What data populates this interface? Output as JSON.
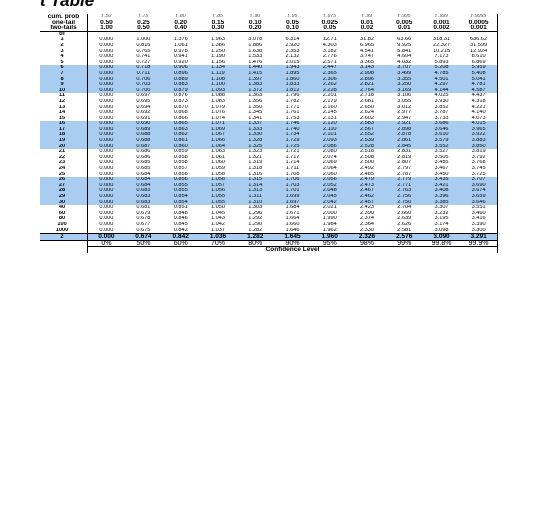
{
  "title": "t Table",
  "header": {
    "cum_prob_label": "cum. prob",
    "one_tail_label": "one-tail",
    "two_tails_label": "two-tails",
    "df_label": "df",
    "symbols": [
      "t .50",
      "t .75",
      "t .80",
      "t .85",
      "t .90",
      "t .95",
      "t .975",
      "t .99",
      "t .995",
      "t .999",
      "t .9995"
    ],
    "one_tail": [
      "0.50",
      "0.25",
      "0.20",
      "0.15",
      "0.10",
      "0.05",
      "0.025",
      "0.01",
      "0.005",
      "0.001",
      "0.0005"
    ],
    "two_tails": [
      "1.00",
      "0.50",
      "0.40",
      "0.30",
      "0.20",
      "0.10",
      "0.05",
      "0.02",
      "0.01",
      "0.002",
      "0.001"
    ]
  },
  "rows": [
    {
      "df": "1",
      "values": [
        "0.000",
        "1.000",
        "1.376",
        "1.963",
        "3.078",
        "6.314",
        "12.71",
        "31.82",
        "63.66",
        "318.31",
        "636.62"
      ]
    },
    {
      "df": "2",
      "values": [
        "0.000",
        "0.816",
        "1.061",
        "1.386",
        "1.886",
        "2.920",
        "4.303",
        "6.965",
        "9.925",
        "22.327",
        "31.599"
      ]
    },
    {
      "df": "3",
      "values": [
        "0.000",
        "0.765",
        "0.978",
        "1.250",
        "1.638",
        "2.353",
        "3.182",
        "4.541",
        "5.841",
        "10.215",
        "12.924"
      ]
    },
    {
      "df": "4",
      "values": [
        "0.000",
        "0.741",
        "0.941",
        "1.190",
        "1.533",
        "2.132",
        "2.776",
        "3.747",
        "4.604",
        "7.173",
        "8.610"
      ]
    },
    {
      "df": "5",
      "values": [
        "0.000",
        "0.727",
        "0.920",
        "1.156",
        "1.476",
        "2.015",
        "2.571",
        "3.365",
        "4.032",
        "5.893",
        "6.869"
      ]
    },
    {
      "df": "6",
      "values": [
        "0.000",
        "0.718",
        "0.906",
        "1.134",
        "1.440",
        "1.943",
        "2.447",
        "3.143",
        "3.707",
        "5.208",
        "5.959"
      ]
    },
    {
      "df": "7",
      "values": [
        "0.000",
        "0.711",
        "0.896",
        "1.119",
        "1.415",
        "1.895",
        "2.365",
        "2.998",
        "3.499",
        "4.785",
        "5.408"
      ]
    },
    {
      "df": "8",
      "values": [
        "0.000",
        "0.706",
        "0.889",
        "1.108",
        "1.397",
        "1.860",
        "2.306",
        "2.896",
        "3.355",
        "4.501",
        "5.041"
      ]
    },
    {
      "df": "9",
      "values": [
        "0.000",
        "0.703",
        "0.883",
        "1.100",
        "1.383",
        "1.833",
        "2.262",
        "2.821",
        "3.250",
        "4.297",
        "4.781"
      ]
    },
    {
      "df": "10",
      "values": [
        "0.000",
        "0.700",
        "0.879",
        "1.093",
        "1.372",
        "1.812",
        "2.228",
        "2.764",
        "3.169",
        "4.144",
        "4.587"
      ]
    },
    {
      "df": "11",
      "values": [
        "0.000",
        "0.697",
        "0.876",
        "1.088",
        "1.363",
        "1.796",
        "2.201",
        "2.718",
        "3.106",
        "4.025",
        "4.437"
      ]
    },
    {
      "df": "12",
      "values": [
        "0.000",
        "0.695",
        "0.873",
        "1.083",
        "1.356",
        "1.782",
        "2.179",
        "2.681",
        "3.055",
        "3.930",
        "4.318"
      ]
    },
    {
      "df": "13",
      "values": [
        "0.000",
        "0.694",
        "0.870",
        "1.079",
        "1.350",
        "1.771",
        "2.160",
        "2.650",
        "3.012",
        "3.852",
        "4.221"
      ]
    },
    {
      "df": "14",
      "values": [
        "0.000",
        "0.692",
        "0.868",
        "1.076",
        "1.345",
        "1.761",
        "2.145",
        "2.624",
        "2.977",
        "3.787",
        "4.140"
      ]
    },
    {
      "df": "15",
      "values": [
        "0.000",
        "0.691",
        "0.866",
        "1.074",
        "1.341",
        "1.753",
        "2.131",
        "2.602",
        "2.947",
        "3.733",
        "4.073"
      ]
    },
    {
      "df": "16",
      "values": [
        "0.000",
        "0.690",
        "0.865",
        "1.071",
        "1.337",
        "1.746",
        "2.120",
        "2.583",
        "2.921",
        "3.686",
        "4.015"
      ]
    },
    {
      "df": "17",
      "values": [
        "0.000",
        "0.689",
        "0.863",
        "1.069",
        "1.333",
        "1.740",
        "2.110",
        "2.567",
        "2.898",
        "3.646",
        "3.965"
      ]
    },
    {
      "df": "18",
      "values": [
        "0.000",
        "0.688",
        "0.862",
        "1.067",
        "1.330",
        "1.734",
        "2.101",
        "2.552",
        "2.878",
        "3.610",
        "3.922"
      ]
    },
    {
      "df": "19",
      "values": [
        "0.000",
        "0.688",
        "0.861",
        "1.066",
        "1.328",
        "1.729",
        "2.093",
        "2.539",
        "2.861",
        "3.579",
        "3.883"
      ]
    },
    {
      "df": "20",
      "values": [
        "0.000",
        "0.687",
        "0.860",
        "1.064",
        "1.325",
        "1.725",
        "2.086",
        "2.528",
        "2.845",
        "3.552",
        "3.850"
      ]
    },
    {
      "df": "21",
      "values": [
        "0.000",
        "0.686",
        "0.859",
        "1.063",
        "1.323",
        "1.721",
        "2.080",
        "2.518",
        "2.831",
        "3.527",
        "3.819"
      ]
    },
    {
      "df": "22",
      "values": [
        "0.000",
        "0.686",
        "0.858",
        "1.061",
        "1.321",
        "1.717",
        "2.074",
        "2.508",
        "2.819",
        "3.505",
        "3.792"
      ]
    },
    {
      "df": "23",
      "values": [
        "0.000",
        "0.685",
        "0.858",
        "1.060",
        "1.319",
        "1.714",
        "2.069",
        "2.500",
        "2.807",
        "3.485",
        "3.768"
      ]
    },
    {
      "df": "24",
      "values": [
        "0.000",
        "0.685",
        "0.857",
        "1.059",
        "1.318",
        "1.711",
        "2.064",
        "2.492",
        "2.797",
        "3.467",
        "3.745"
      ]
    },
    {
      "df": "25",
      "values": [
        "0.000",
        "0.684",
        "0.856",
        "1.058",
        "1.316",
        "1.708",
        "2.060",
        "2.485",
        "2.787",
        "3.450",
        "3.725"
      ]
    },
    {
      "df": "26",
      "values": [
        "0.000",
        "0.684",
        "0.856",
        "1.058",
        "1.315",
        "1.706",
        "2.056",
        "2.479",
        "2.779",
        "3.435",
        "3.707"
      ]
    },
    {
      "df": "27",
      "values": [
        "0.000",
        "0.684",
        "0.855",
        "1.057",
        "1.314",
        "1.703",
        "2.052",
        "2.473",
        "2.771",
        "3.421",
        "3.690"
      ]
    },
    {
      "df": "28",
      "values": [
        "0.000",
        "0.683",
        "0.855",
        "1.056",
        "1.313",
        "1.701",
        "2.048",
        "2.467",
        "2.763",
        "3.408",
        "3.674"
      ]
    },
    {
      "df": "29",
      "values": [
        "0.000",
        "0.683",
        "0.854",
        "1.055",
        "1.311",
        "1.699",
        "2.045",
        "2.462",
        "2.756",
        "3.396",
        "3.659"
      ]
    },
    {
      "df": "30",
      "values": [
        "0.000",
        "0.683",
        "0.854",
        "1.055",
        "1.310",
        "1.697",
        "2.042",
        "2.457",
        "2.750",
        "3.385",
        "3.646"
      ]
    },
    {
      "df": "40",
      "values": [
        "0.000",
        "0.681",
        "0.851",
        "1.050",
        "1.303",
        "1.684",
        "2.021",
        "2.423",
        "2.704",
        "3.307",
        "3.551"
      ]
    },
    {
      "df": "60",
      "values": [
        "0.000",
        "0.679",
        "0.848",
        "1.045",
        "1.296",
        "1.671",
        "2.000",
        "2.390",
        "2.660",
        "3.232",
        "3.460"
      ]
    },
    {
      "df": "80",
      "values": [
        "0.000",
        "0.678",
        "0.846",
        "1.043",
        "1.292",
        "1.664",
        "1.990",
        "2.374",
        "2.639",
        "3.195",
        "3.416"
      ]
    },
    {
      "df": "100",
      "values": [
        "0.000",
        "0.677",
        "0.845",
        "1.042",
        "1.290",
        "1.660",
        "1.984",
        "2.364",
        "2.626",
        "3.174",
        "3.390"
      ]
    },
    {
      "df": "1000",
      "values": [
        "0.000",
        "0.675",
        "0.842",
        "1.037",
        "1.282",
        "1.646",
        "1.962",
        "2.330",
        "2.581",
        "3.098",
        "3.300"
      ]
    }
  ],
  "z_row": {
    "label": "z",
    "values": [
      "0.000",
      "0.674",
      "0.842",
      "1.036",
      "1.282",
      "1.645",
      "1.960",
      "2.326",
      "2.576",
      "3.090",
      "3.291"
    ]
  },
  "confidence_levels": [
    "0%",
    "50%",
    "60%",
    "70%",
    "80%",
    "90%",
    "95%",
    "98%",
    "99%",
    "99.8%",
    "99.9%"
  ],
  "confidence_label": "Confidence Level",
  "colors": {
    "highlight": "#a8cdf0"
  }
}
